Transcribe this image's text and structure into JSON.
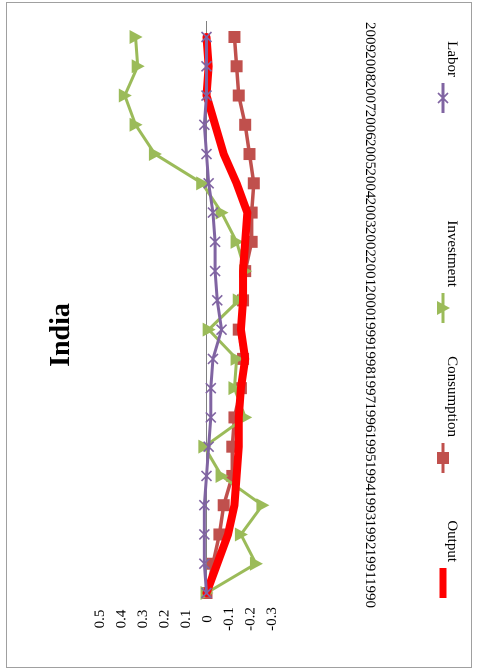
{
  "chart_data": {
    "type": "line",
    "title": "India",
    "orientation": "rotated-90-clockwise",
    "categories": [
      "1990",
      "1991",
      "1992",
      "1993",
      "1994",
      "1995",
      "1996",
      "1997",
      "1998",
      "1999",
      "2000",
      "2001",
      "2002",
      "2003",
      "2004",
      "2005",
      "2006",
      "2007",
      "2008",
      "2009"
    ],
    "ylim": [
      -0.3,
      0.5
    ],
    "yticks": [
      "0.5",
      "0.4",
      "0.3",
      "0.2",
      "0.1",
      "0",
      "-0.1",
      "-0.2",
      "-0.3"
    ],
    "ytick_values": [
      0.5,
      0.4,
      0.3,
      0.2,
      0.1,
      0,
      -0.1,
      -0.2,
      -0.3
    ],
    "legend_position": "right",
    "series": [
      {
        "name": "Output",
        "color": "#ff0000",
        "marker": "none",
        "values": [
          0,
          -0.05,
          -0.1,
          -0.13,
          -0.14,
          -0.15,
          -0.15,
          -0.16,
          -0.18,
          -0.16,
          -0.17,
          -0.17,
          -0.18,
          -0.19,
          -0.14,
          -0.08,
          -0.04,
          0.0,
          -0.01,
          0.0
        ]
      },
      {
        "name": "Consumption",
        "color": "#c0504d",
        "marker": "square",
        "values": [
          0,
          -0.03,
          -0.06,
          -0.08,
          -0.12,
          -0.12,
          -0.13,
          -0.16,
          -0.17,
          -0.15,
          -0.17,
          -0.18,
          -0.21,
          -0.21,
          -0.22,
          -0.2,
          -0.18,
          -0.15,
          -0.14,
          -0.13
        ]
      },
      {
        "name": "Investment",
        "color": "#9bbb59",
        "marker": "triangle",
        "values": [
          0,
          -0.23,
          -0.16,
          -0.26,
          -0.07,
          0.01,
          -0.18,
          -0.13,
          -0.14,
          -0.01,
          -0.15,
          -0.18,
          -0.14,
          -0.07,
          0.02,
          0.24,
          0.33,
          0.38,
          0.32,
          0.33
        ]
      },
      {
        "name": "Labor",
        "color": "#8064a2",
        "marker": "x",
        "values": [
          0,
          0.01,
          0.01,
          0.01,
          0.0,
          -0.01,
          -0.02,
          -0.02,
          -0.03,
          -0.07,
          -0.05,
          -0.04,
          -0.04,
          -0.03,
          -0.01,
          0.0,
          0.01,
          0.0,
          0.0,
          0.0
        ]
      }
    ]
  }
}
